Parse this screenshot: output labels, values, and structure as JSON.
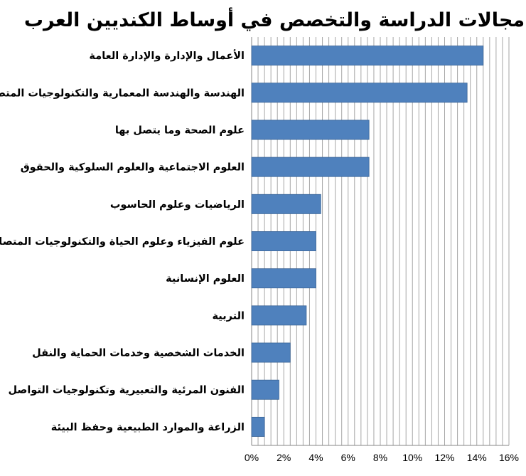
{
  "chart_data": {
    "type": "bar",
    "orientation": "horizontal",
    "title": "مجالات الدراسة والتخصص في أوساط الكنديين العرب",
    "categories": [
      "الأعمال والإدارة والإدارة العامة",
      "الهندسة والهندسة المعمارية والتكنولوجيات المتصلة",
      "علوم الصحة وما يتصل بها",
      "العلوم الاجتماعية والعلوم السلوكية والحقوق",
      "الرياضيات وعلوم الحاسوب",
      "علوم الفيزياء وعلوم الحياة والتكنولوجيات المتصلة",
      "العلوم الإنسانية",
      "التربية",
      "الخدمات الشخصية وخدمات الحماية والنقل",
      "الفنون المرئية والتعبيرية وتكنولوجيات التواصل",
      "الزراعة والموارد الطبيعية وحفظ البيئة"
    ],
    "values": [
      14.4,
      13.4,
      7.3,
      7.3,
      4.3,
      4.0,
      4.0,
      3.4,
      2.4,
      1.7,
      0.8
    ],
    "xlim": [
      0,
      16
    ],
    "xticks": [
      "0%",
      "2%",
      "4%",
      "6%",
      "8%",
      "10%",
      "12%",
      "14%",
      "16%"
    ],
    "minor_grid_step": 0.4,
    "grid": true,
    "bar_color": "#4f81bd"
  }
}
